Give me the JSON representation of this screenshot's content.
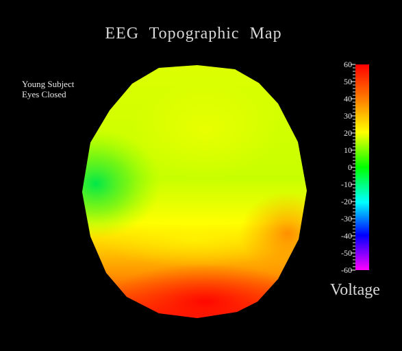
{
  "title": "EEG  Topographic  Map",
  "annotation": {
    "line1": "Young Subject",
    "line2": "Eyes Closed"
  },
  "colorbar": {
    "caption": "Voltage",
    "min": -60,
    "max": 60,
    "major_ticks": [
      60,
      50,
      40,
      30,
      20,
      10,
      0,
      -10,
      -20,
      -30,
      -40,
      -50,
      -60
    ],
    "minor_per_major": 5,
    "colors": [
      "#ff0000",
      "#ff8000",
      "#ffff00",
      "#00ff00",
      "#00ffff",
      "#0000ff",
      "#ff00ff"
    ]
  },
  "colors": {
    "background": "#000000",
    "text": "#d8d8d8"
  }
}
